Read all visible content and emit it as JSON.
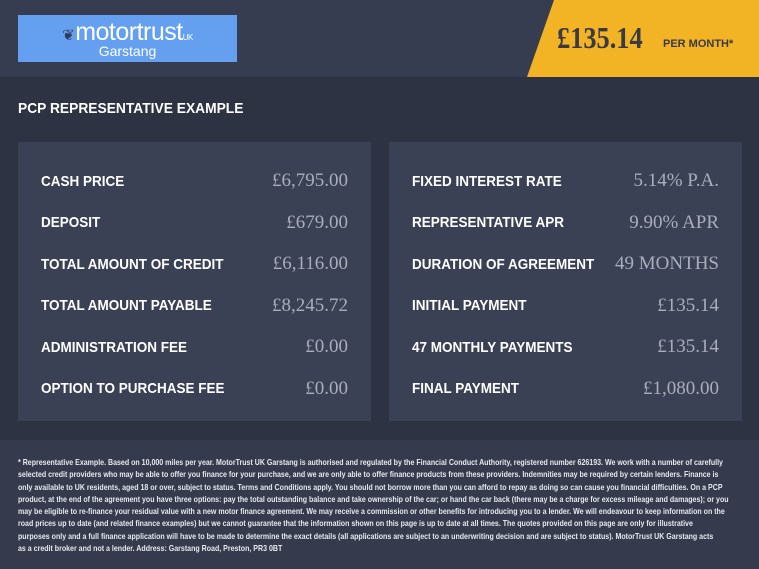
{
  "header": {
    "logo": {
      "brand": "motortrust",
      "suffix": "UK",
      "location": "Garstang"
    },
    "price": "£135.14",
    "per_month": "PER MONTH*"
  },
  "colors": {
    "accent": "#f2b325",
    "logo_bg": "#64a0ef",
    "panel": "#3a4155"
  },
  "title": "PCP REPRESENTATIVE EXAMPLE",
  "left": [
    {
      "label": "CASH PRICE",
      "value": "£6,795.00"
    },
    {
      "label": "DEPOSIT",
      "value": "£679.00"
    },
    {
      "label": "TOTAL AMOUNT OF CREDIT",
      "value": "£6,116.00"
    },
    {
      "label": "TOTAL AMOUNT PAYABLE",
      "value": "£8,245.72"
    },
    {
      "label": "ADMINISTRATION FEE",
      "value": "£0.00"
    },
    {
      "label": "OPTION TO PURCHASE FEE",
      "value": "£0.00"
    }
  ],
  "right": [
    {
      "label": "FIXED INTEREST RATE",
      "value": "5.14% P.A."
    },
    {
      "label": "REPRESENTATIVE APR",
      "value": "9.90% APR"
    },
    {
      "label": "DURATION OF AGREEMENT",
      "value": "49 MONTHS"
    },
    {
      "label": "INITIAL PAYMENT",
      "value": "£135.14"
    },
    {
      "label": "47 MONTHLY PAYMENTS",
      "value": "£135.14"
    },
    {
      "label": "FINAL PAYMENT",
      "value": "£1,080.00"
    }
  ],
  "disclaimer": [
    "* Representative Example. Based on 10,000 miles per year. MotorTrust UK Garstang is authorised and regulated by the Financial Conduct Authority, registered number 626193. We work with a number of carefully",
    "selected credit providers who may be able to offer you finance for your purchase, and we are only able to offer finance products from these providers. Indemnities may be required by certain lenders. Finance is",
    "only available to UK residents, aged 18 or over, subject to status. Terms and Conditions apply. You should not borrow more than you can afford to repay as doing so can cause you financial difficulties. On a PCP",
    "product, at the end of the agreement you have three options: pay the total outstanding balance and take ownership of the car; or hand the car back (there may be a charge for excess mileage and damages); or you",
    "may be eligible to re-finance your residual value with a new motor finance agreement. We may receive a commission or other benefits for introducing you to a lender. We will endeavour to keep information on the",
    "road prices up to date (and related finance examples) but we cannot guarantee that the information shown on this page is up to date at all times. The quotes provided on this page are only for illustrative",
    "purposes only and a full finance application will have to be made to determine the exact details (all applications are subject to an underwriting decision and are subject to status). MotorTrust UK Garstang acts",
    "as a credit broker and not a lender. Address: Garstang Road, Preston, PR3 0BT"
  ]
}
